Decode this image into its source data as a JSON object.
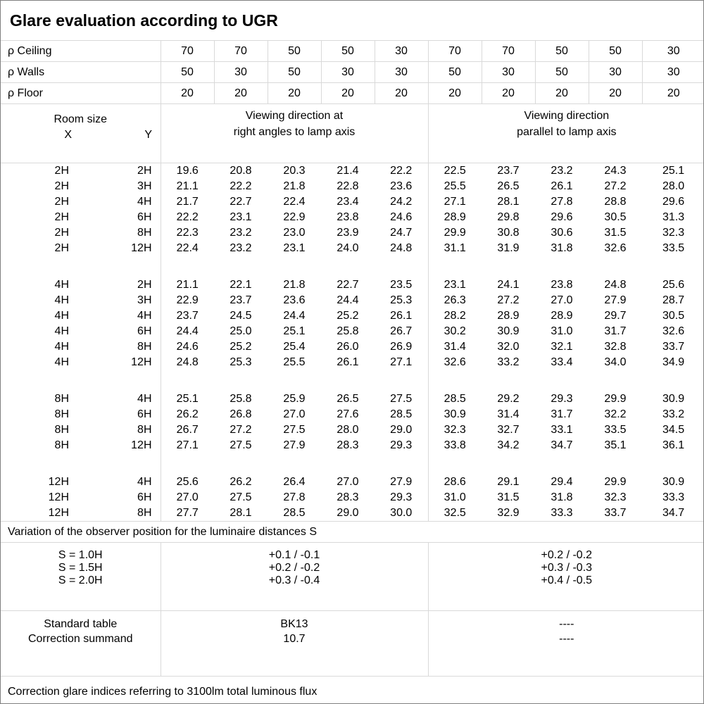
{
  "title": "Glare evaluation according to UGR",
  "colors": {
    "background": "#ffffff",
    "text": "#000000",
    "grid_line": "#d9d9d9",
    "outer_border": "#808080"
  },
  "reflectance_rows": [
    {
      "label": "ρ Ceiling",
      "values": [
        "70",
        "70",
        "50",
        "50",
        "30",
        "70",
        "70",
        "50",
        "50",
        "30"
      ]
    },
    {
      "label": "ρ Walls",
      "values": [
        "50",
        "30",
        "50",
        "30",
        "30",
        "50",
        "30",
        "50",
        "30",
        "30"
      ]
    },
    {
      "label": "ρ Floor",
      "values": [
        "20",
        "20",
        "20",
        "20",
        "20",
        "20",
        "20",
        "20",
        "20",
        "20"
      ]
    }
  ],
  "room_header": {
    "title": "Room size",
    "x": "X",
    "y": "Y"
  },
  "group_headers": {
    "right_angles": [
      "Viewing direction at",
      "right angles to lamp axis"
    ],
    "parallel": [
      "Viewing direction",
      "parallel to lamp axis"
    ]
  },
  "data_blocks": [
    {
      "rows": [
        {
          "x": "2H",
          "y": "2H",
          "right_angles": [
            "19.6",
            "20.8",
            "20.3",
            "21.4",
            "22.2"
          ],
          "parallel": [
            "22.5",
            "23.7",
            "23.2",
            "24.3",
            "25.1"
          ]
        },
        {
          "x": "2H",
          "y": "3H",
          "right_angles": [
            "21.1",
            "22.2",
            "21.8",
            "22.8",
            "23.6"
          ],
          "parallel": [
            "25.5",
            "26.5",
            "26.1",
            "27.2",
            "28.0"
          ]
        },
        {
          "x": "2H",
          "y": "4H",
          "right_angles": [
            "21.7",
            "22.7",
            "22.4",
            "23.4",
            "24.2"
          ],
          "parallel": [
            "27.1",
            "28.1",
            "27.8",
            "28.8",
            "29.6"
          ]
        },
        {
          "x": "2H",
          "y": "6H",
          "right_angles": [
            "22.2",
            "23.1",
            "22.9",
            "23.8",
            "24.6"
          ],
          "parallel": [
            "28.9",
            "29.8",
            "29.6",
            "30.5",
            "31.3"
          ]
        },
        {
          "x": "2H",
          "y": "8H",
          "right_angles": [
            "22.3",
            "23.2",
            "23.0",
            "23.9",
            "24.7"
          ],
          "parallel": [
            "29.9",
            "30.8",
            "30.6",
            "31.5",
            "32.3"
          ]
        },
        {
          "x": "2H",
          "y": "12H",
          "right_angles": [
            "22.4",
            "23.2",
            "23.1",
            "24.0",
            "24.8"
          ],
          "parallel": [
            "31.1",
            "31.9",
            "31.8",
            "32.6",
            "33.5"
          ]
        }
      ]
    },
    {
      "rows": [
        {
          "x": "4H",
          "y": "2H",
          "right_angles": [
            "21.1",
            "22.1",
            "21.8",
            "22.7",
            "23.5"
          ],
          "parallel": [
            "23.1",
            "24.1",
            "23.8",
            "24.8",
            "25.6"
          ]
        },
        {
          "x": "4H",
          "y": "3H",
          "right_angles": [
            "22.9",
            "23.7",
            "23.6",
            "24.4",
            "25.3"
          ],
          "parallel": [
            "26.3",
            "27.2",
            "27.0",
            "27.9",
            "28.7"
          ]
        },
        {
          "x": "4H",
          "y": "4H",
          "right_angles": [
            "23.7",
            "24.5",
            "24.4",
            "25.2",
            "26.1"
          ],
          "parallel": [
            "28.2",
            "28.9",
            "28.9",
            "29.7",
            "30.5"
          ]
        },
        {
          "x": "4H",
          "y": "6H",
          "right_angles": [
            "24.4",
            "25.0",
            "25.1",
            "25.8",
            "26.7"
          ],
          "parallel": [
            "30.2",
            "30.9",
            "31.0",
            "31.7",
            "32.6"
          ]
        },
        {
          "x": "4H",
          "y": "8H",
          "right_angles": [
            "24.6",
            "25.2",
            "25.4",
            "26.0",
            "26.9"
          ],
          "parallel": [
            "31.4",
            "32.0",
            "32.1",
            "32.8",
            "33.7"
          ]
        },
        {
          "x": "4H",
          "y": "12H",
          "right_angles": [
            "24.8",
            "25.3",
            "25.5",
            "26.1",
            "27.1"
          ],
          "parallel": [
            "32.6",
            "33.2",
            "33.4",
            "34.0",
            "34.9"
          ]
        }
      ]
    },
    {
      "rows": [
        {
          "x": "8H",
          "y": "4H",
          "right_angles": [
            "25.1",
            "25.8",
            "25.9",
            "26.5",
            "27.5"
          ],
          "parallel": [
            "28.5",
            "29.2",
            "29.3",
            "29.9",
            "30.9"
          ]
        },
        {
          "x": "8H",
          "y": "6H",
          "right_angles": [
            "26.2",
            "26.8",
            "27.0",
            "27.6",
            "28.5"
          ],
          "parallel": [
            "30.9",
            "31.4",
            "31.7",
            "32.2",
            "33.2"
          ]
        },
        {
          "x": "8H",
          "y": "8H",
          "right_angles": [
            "26.7",
            "27.2",
            "27.5",
            "28.0",
            "29.0"
          ],
          "parallel": [
            "32.3",
            "32.7",
            "33.1",
            "33.5",
            "34.5"
          ]
        },
        {
          "x": "8H",
          "y": "12H",
          "right_angles": [
            "27.1",
            "27.5",
            "27.9",
            "28.3",
            "29.3"
          ],
          "parallel": [
            "33.8",
            "34.2",
            "34.7",
            "35.1",
            "36.1"
          ]
        }
      ]
    },
    {
      "rows": [
        {
          "x": "12H",
          "y": "4H",
          "right_angles": [
            "25.6",
            "26.2",
            "26.4",
            "27.0",
            "27.9"
          ],
          "parallel": [
            "28.6",
            "29.1",
            "29.4",
            "29.9",
            "30.9"
          ]
        },
        {
          "x": "12H",
          "y": "6H",
          "right_angles": [
            "27.0",
            "27.5",
            "27.8",
            "28.3",
            "29.3"
          ],
          "parallel": [
            "31.0",
            "31.5",
            "31.8",
            "32.3",
            "33.3"
          ]
        },
        {
          "x": "12H",
          "y": "8H",
          "right_angles": [
            "27.7",
            "28.1",
            "28.5",
            "29.0",
            "30.0"
          ],
          "parallel": [
            "32.5",
            "32.9",
            "33.3",
            "33.7",
            "34.7"
          ]
        }
      ]
    }
  ],
  "variation_note": "Variation of the observer position for the luminaire distances S",
  "variation_table": {
    "s_labels": [
      "S = 1.0H",
      "S = 1.5H",
      "S = 2.0H"
    ],
    "right_angles": [
      "+0.1 / -0.1",
      "+0.2 / -0.2",
      "+0.3 / -0.4"
    ],
    "parallel": [
      "+0.2 / -0.2",
      "+0.3 / -0.3",
      "+0.4 / -0.5"
    ]
  },
  "summary_rows": [
    {
      "label": "Standard table",
      "right_angles": "BK13",
      "parallel": "----"
    },
    {
      "label": "Correction summand",
      "right_angles": "10.7",
      "parallel": "----"
    }
  ],
  "footer_note": "Correction glare indices referring to 3100lm total luminous flux"
}
